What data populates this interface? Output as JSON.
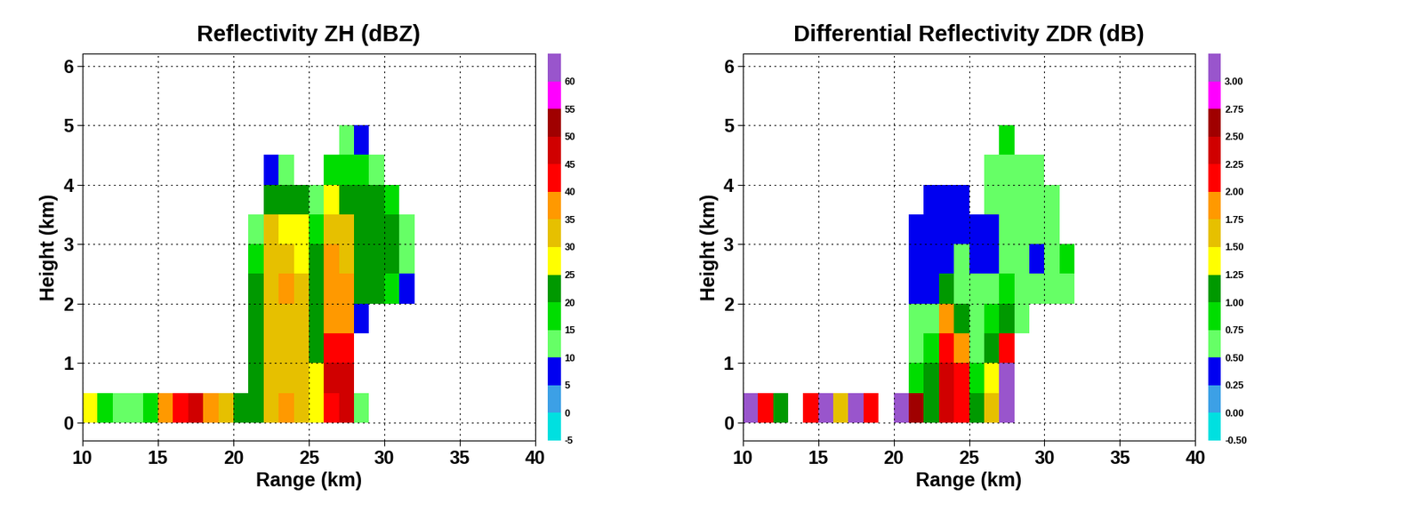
{
  "chart_data": [
    {
      "type": "heatmap",
      "title": "Reflectivity ZH (dBZ)",
      "xlabel": "Range (km)",
      "ylabel": "Height (km)",
      "x_edges": [
        10,
        11,
        12,
        13,
        14,
        15,
        16,
        17,
        18,
        19,
        20,
        21,
        22,
        23,
        24,
        25,
        26,
        27,
        28,
        29,
        30,
        31,
        32,
        33,
        34,
        35,
        36,
        37,
        38,
        39,
        40
      ],
      "y_edges": [
        0,
        0.5,
        1,
        1.5,
        2,
        2.5,
        3,
        3.5,
        4,
        4.5,
        5,
        5.5,
        6
      ],
      "cells": [
        [
          25,
          15,
          10,
          10,
          15,
          35,
          40,
          45,
          35,
          30,
          20,
          20,
          30,
          35,
          30,
          25,
          40,
          45,
          10,
          null,
          null,
          null,
          null,
          null,
          null,
          null,
          null,
          null,
          null,
          null
        ],
        [
          null,
          null,
          null,
          null,
          null,
          null,
          null,
          null,
          null,
          null,
          null,
          20,
          30,
          30,
          30,
          25,
          45,
          45,
          null,
          null,
          null,
          null,
          null,
          null,
          null,
          null,
          null,
          null,
          null,
          null
        ],
        [
          null,
          null,
          null,
          null,
          null,
          null,
          null,
          null,
          null,
          null,
          null,
          20,
          30,
          30,
          30,
          20,
          40,
          40,
          null,
          null,
          null,
          null,
          null,
          null,
          null,
          null,
          null,
          null,
          null,
          null
        ],
        [
          null,
          null,
          null,
          null,
          null,
          null,
          null,
          null,
          null,
          null,
          null,
          20,
          30,
          30,
          30,
          20,
          35,
          35,
          5,
          null,
          null,
          null,
          null,
          null,
          null,
          null,
          null,
          null,
          null,
          null
        ],
        [
          null,
          null,
          null,
          null,
          null,
          null,
          null,
          null,
          null,
          null,
          null,
          20,
          30,
          35,
          30,
          20,
          35,
          35,
          20,
          20,
          15,
          5,
          null,
          null,
          null,
          null,
          null,
          null,
          null,
          null
        ],
        [
          null,
          null,
          null,
          null,
          null,
          null,
          null,
          null,
          null,
          null,
          null,
          15,
          30,
          30,
          25,
          20,
          35,
          30,
          20,
          20,
          20,
          10,
          null,
          null,
          null,
          null,
          null,
          null,
          null,
          null
        ],
        [
          null,
          null,
          null,
          null,
          null,
          null,
          null,
          null,
          null,
          null,
          null,
          10,
          30,
          25,
          25,
          15,
          30,
          30,
          20,
          20,
          20,
          10,
          null,
          null,
          null,
          null,
          null,
          null,
          null,
          null
        ],
        [
          null,
          null,
          null,
          null,
          null,
          null,
          null,
          null,
          null,
          null,
          null,
          null,
          20,
          20,
          20,
          10,
          25,
          20,
          20,
          20,
          15,
          null,
          null,
          null,
          null,
          null,
          null,
          null,
          null,
          null
        ],
        [
          null,
          null,
          null,
          null,
          null,
          null,
          null,
          null,
          null,
          null,
          null,
          null,
          5,
          10,
          null,
          null,
          15,
          15,
          15,
          10,
          null,
          null,
          null,
          null,
          null,
          null,
          null,
          null,
          null,
          null
        ],
        [
          null,
          null,
          null,
          null,
          null,
          null,
          null,
          null,
          null,
          null,
          null,
          null,
          null,
          null,
          null,
          null,
          null,
          10,
          5,
          null,
          null,
          null,
          null,
          null,
          null,
          null,
          null,
          null,
          null,
          null
        ],
        [
          null,
          null,
          null,
          null,
          null,
          null,
          null,
          null,
          null,
          null,
          null,
          null,
          null,
          null,
          null,
          null,
          null,
          null,
          null,
          null,
          null,
          null,
          null,
          null,
          null,
          null,
          null,
          null,
          null,
          null
        ],
        [
          null,
          null,
          null,
          null,
          null,
          null,
          null,
          null,
          null,
          null,
          null,
          null,
          null,
          null,
          null,
          null,
          null,
          null,
          null,
          null,
          null,
          null,
          null,
          null,
          null,
          null,
          null,
          null,
          null,
          null
        ]
      ],
      "xlim": [
        10,
        40
      ],
      "ylim": [
        -0.3,
        6.2
      ],
      "xticks": [
        10,
        15,
        20,
        25,
        30,
        35,
        40
      ],
      "yticks": [
        0,
        1,
        2,
        3,
        4,
        5,
        6
      ],
      "grid": true,
      "colorbar": {
        "boundaries": [
          -5,
          0,
          5,
          10,
          15,
          20,
          25,
          30,
          35,
          40,
          45,
          50,
          55,
          60,
          65
        ],
        "ticks": [
          -5,
          0,
          5,
          10,
          15,
          20,
          25,
          30,
          35,
          40,
          45,
          50,
          55,
          60
        ],
        "colors": [
          "#00e0e0",
          "#3ca0e6",
          "#0000f0",
          "#66ff66",
          "#00dd00",
          "#009900",
          "#ffff00",
          "#e6c000",
          "#ff9900",
          "#ff0000",
          "#d00000",
          "#a00000",
          "#ff00ff",
          "#9955cc"
        ]
      }
    },
    {
      "type": "heatmap",
      "title": "Differential Reflectivity ZDR (dB)",
      "xlabel": "Range (km)",
      "ylabel": "Height (km)",
      "x_edges": [
        10,
        11,
        12,
        13,
        14,
        15,
        16,
        17,
        18,
        19,
        20,
        21,
        22,
        23,
        24,
        25,
        26,
        27,
        28,
        29,
        30,
        31,
        32,
        33,
        34,
        35,
        36,
        37,
        38,
        39,
        40
      ],
      "y_edges": [
        0,
        0.5,
        1,
        1.5,
        2,
        2.5,
        3,
        3.5,
        4,
        4.5,
        5,
        5.5,
        6
      ],
      "cells": [
        [
          3,
          2,
          1,
          null,
          2,
          3,
          1.5,
          3,
          2,
          null,
          3,
          2.5,
          1,
          2.25,
          2,
          1,
          1.5,
          3,
          null,
          null,
          null,
          null,
          null,
          null,
          null,
          null,
          null,
          null,
          null,
          null
        ],
        [
          null,
          null,
          null,
          null,
          null,
          null,
          null,
          null,
          null,
          null,
          null,
          0.75,
          1,
          2.25,
          2,
          0.75,
          1.25,
          3,
          null,
          null,
          null,
          null,
          null,
          null,
          null,
          null,
          null,
          null,
          null,
          null
        ],
        [
          null,
          null,
          null,
          null,
          null,
          null,
          null,
          null,
          null,
          null,
          null,
          0.5,
          0.75,
          2,
          1.75,
          0.5,
          1,
          2,
          null,
          null,
          null,
          null,
          null,
          null,
          null,
          null,
          null,
          null,
          null,
          null
        ],
        [
          null,
          null,
          null,
          null,
          null,
          null,
          null,
          null,
          null,
          null,
          null,
          0.5,
          0.5,
          1.75,
          1,
          0.5,
          0.75,
          1,
          0.5,
          null,
          null,
          null,
          null,
          null,
          null,
          null,
          null,
          null,
          null,
          null
        ],
        [
          null,
          null,
          null,
          null,
          null,
          null,
          null,
          null,
          null,
          null,
          null,
          0.25,
          0.25,
          1,
          0.5,
          0.5,
          0.5,
          0.75,
          0.5,
          0.5,
          0.5,
          0.5,
          null,
          null,
          null,
          null,
          null,
          null,
          null,
          null
        ],
        [
          null,
          null,
          null,
          null,
          null,
          null,
          null,
          null,
          null,
          null,
          null,
          0.25,
          0.25,
          0.25,
          0.5,
          0.25,
          0.25,
          0.5,
          0.5,
          0.25,
          0.5,
          0.75,
          null,
          null,
          null,
          null,
          null,
          null,
          null,
          null
        ],
        [
          null,
          null,
          null,
          null,
          null,
          null,
          null,
          null,
          null,
          null,
          null,
          0.25,
          0.25,
          0.25,
          0.25,
          0.25,
          0.25,
          0.5,
          0.5,
          0.5,
          0.5,
          null,
          null,
          null,
          null,
          null,
          null,
          null,
          null,
          null
        ],
        [
          null,
          null,
          null,
          null,
          null,
          null,
          null,
          null,
          null,
          null,
          null,
          null,
          0.25,
          0.25,
          0.25,
          null,
          0.5,
          0.5,
          0.5,
          0.5,
          0.5,
          null,
          null,
          null,
          null,
          null,
          null,
          null,
          null,
          null
        ],
        [
          null,
          null,
          null,
          null,
          null,
          null,
          null,
          null,
          null,
          null,
          null,
          null,
          null,
          null,
          null,
          null,
          0.5,
          0.5,
          0.5,
          0.5,
          null,
          null,
          null,
          null,
          null,
          null,
          null,
          null,
          null,
          null
        ],
        [
          null,
          null,
          null,
          null,
          null,
          null,
          null,
          null,
          null,
          null,
          null,
          null,
          null,
          null,
          null,
          null,
          null,
          0.75,
          null,
          null,
          null,
          null,
          null,
          null,
          null,
          null,
          null,
          null,
          null,
          null
        ],
        [
          null,
          null,
          null,
          null,
          null,
          null,
          null,
          null,
          null,
          null,
          null,
          null,
          null,
          null,
          null,
          null,
          null,
          null,
          null,
          null,
          null,
          null,
          null,
          null,
          null,
          null,
          null,
          null,
          null,
          null
        ],
        [
          null,
          null,
          null,
          null,
          null,
          null,
          null,
          null,
          null,
          null,
          null,
          null,
          null,
          null,
          null,
          null,
          null,
          null,
          null,
          null,
          null,
          null,
          null,
          null,
          null,
          null,
          null,
          null,
          null,
          null
        ]
      ],
      "xlim": [
        10,
        40
      ],
      "ylim": [
        -0.3,
        6.2
      ],
      "xticks": [
        10,
        15,
        20,
        25,
        30,
        35,
        40
      ],
      "yticks": [
        0,
        1,
        2,
        3,
        4,
        5,
        6
      ],
      "grid": true,
      "colorbar": {
        "boundaries": [
          -0.5,
          0,
          0.25,
          0.5,
          0.75,
          1,
          1.25,
          1.5,
          1.75,
          2,
          2.25,
          2.5,
          2.75,
          3,
          3.25
        ],
        "ticks": [
          {
            "value": -0.5,
            "label": "-0.50"
          },
          {
            "value": 0,
            "label": "0.00"
          },
          0.25,
          {
            "value": 0.5,
            "label": "0.50"
          },
          0.75,
          {
            "value": 1,
            "label": "1.00"
          },
          1.25,
          {
            "value": 1.5,
            "label": "1.50"
          },
          1.75,
          {
            "value": 2,
            "label": "2.00"
          },
          2.25,
          {
            "value": 2.5,
            "label": "2.50"
          },
          2.75,
          {
            "value": 3,
            "label": "3.00"
          }
        ],
        "colors": [
          "#00e0e0",
          "#3ca0e6",
          "#0000f0",
          "#66ff66",
          "#00dd00",
          "#009900",
          "#ffff00",
          "#e6c000",
          "#ff9900",
          "#ff0000",
          "#d00000",
          "#a00000",
          "#ff00ff",
          "#9955cc"
        ]
      }
    }
  ]
}
